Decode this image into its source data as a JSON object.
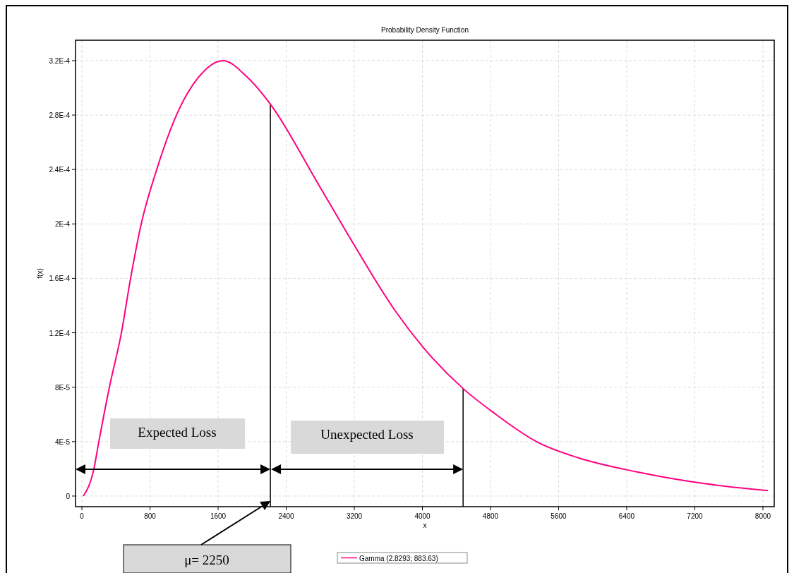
{
  "chart_data": {
    "type": "line",
    "title": "Probability Density Function",
    "xlabel": "x",
    "ylabel": "f(x)",
    "xlim": [
      -75,
      8133
    ],
    "ylim": [
      -7.8e-06,
      0.000335
    ],
    "xticks": [
      0,
      800,
      1600,
      2400,
      3200,
      4000,
      4800,
      5600,
      6400,
      7200,
      8000
    ],
    "yticks": [
      {
        "value": 0,
        "label": "0"
      },
      {
        "value": 4e-05,
        "label": "4E-5"
      },
      {
        "value": 8e-05,
        "label": "8E-5"
      },
      {
        "value": 0.00012,
        "label": "1.2E-4"
      },
      {
        "value": 0.00016,
        "label": "1.6E-4"
      },
      {
        "value": 0.0002,
        "label": "2E-4"
      },
      {
        "value": 0.00024,
        "label": "2.4E-4"
      },
      {
        "value": 0.00028,
        "label": "2.8E-4"
      },
      {
        "value": 0.00032,
        "label": "3.2E-4"
      }
    ],
    "grid": true,
    "legend": "bottom",
    "marker": "none",
    "line_style": "solid",
    "series": [
      {
        "name": "Gamma  (2.8293; 883.63)",
        "color": "#ff0080",
        "x": [
          17,
          141,
          199,
          323,
          464,
          572,
          697,
          879,
          1111,
          1360,
          1658,
          1940,
          2214,
          2770,
          3184,
          3682,
          4013,
          4478,
          4842,
          5340,
          5838,
          6501,
          7330,
          8060
        ],
        "values": [
          0,
          2e-05,
          4e-05,
          8e-05,
          0.00012,
          0.00016,
          0.0002,
          0.00024,
          0.00028,
          0.000307,
          0.00032,
          0.000308,
          0.000288,
          0.00023,
          0.000186,
          0.000136,
          0.000109,
          7.9e-05,
          6.1e-05,
          4e-05,
          2.8e-05,
          1.8e-05,
          9e-06,
          4e-06
        ]
      }
    ],
    "ref_lines": [
      {
        "axis": "x",
        "value": 2214,
        "color": "#000000"
      },
      {
        "axis": "x",
        "value": 4478,
        "color": "#000000"
      }
    ],
    "annotations": [
      "Expected Loss",
      "Unexpected Loss",
      "μ= 2250"
    ]
  }
}
